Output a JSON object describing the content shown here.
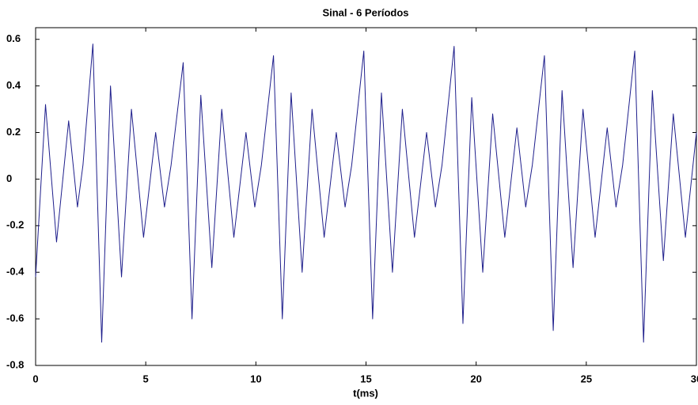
{
  "chart_data": {
    "type": "line",
    "title": "Sinal - 6 Períodos",
    "x_label": "t(ms)",
    "x": [
      0,
      0.45,
      0.95,
      1.5,
      1.9,
      2.15,
      2.6,
      3.0,
      3.4,
      3.9,
      4.35,
      4.9,
      5.45,
      5.85,
      6.15,
      6.7,
      7.1,
      7.5,
      8.0,
      8.45,
      9.0,
      9.55,
      9.95,
      10.25,
      10.8,
      11.2,
      11.6,
      12.1,
      12.55,
      13.1,
      13.65,
      14.05,
      14.35,
      14.9,
      15.3,
      15.7,
      16.2,
      16.65,
      17.2,
      17.75,
      18.15,
      18.45,
      19.0,
      19.4,
      19.8,
      20.3,
      20.75,
      21.3,
      21.85,
      22.25,
      22.55,
      23.1,
      23.5,
      23.9,
      24.4,
      24.85,
      25.4,
      25.95,
      26.35,
      26.65,
      27.2,
      27.6,
      28.0,
      28.5,
      28.95,
      29.5,
      30.0
    ],
    "values": [
      -0.42,
      0.32,
      -0.27,
      0.25,
      -0.12,
      0.06,
      0.58,
      -0.7,
      0.4,
      -0.42,
      0.3,
      -0.25,
      0.2,
      -0.12,
      0.06,
      0.5,
      -0.6,
      0.36,
      -0.38,
      0.3,
      -0.25,
      0.2,
      -0.12,
      0.06,
      0.53,
      -0.6,
      0.37,
      -0.4,
      0.3,
      -0.25,
      0.2,
      -0.12,
      0.06,
      0.55,
      -0.6,
      0.37,
      -0.4,
      0.3,
      -0.25,
      0.2,
      -0.12,
      0.06,
      0.57,
      -0.62,
      0.35,
      -0.4,
      0.28,
      -0.25,
      0.22,
      -0.12,
      0.06,
      0.53,
      -0.65,
      0.38,
      -0.38,
      0.3,
      -0.25,
      0.22,
      -0.12,
      0.06,
      0.55,
      -0.7,
      0.38,
      -0.35,
      0.28,
      -0.25,
      0.2
    ],
    "color": "#1f1f8c",
    "xlim": [
      0,
      30
    ],
    "xticks": [
      0,
      5,
      10,
      15,
      20,
      25,
      30
    ],
    "ylim": [
      -0.8,
      0.65
    ],
    "yticks": [
      -0.8,
      -0.6,
      -0.4,
      -0.2,
      0,
      0.2,
      0.4,
      0.6
    ]
  }
}
